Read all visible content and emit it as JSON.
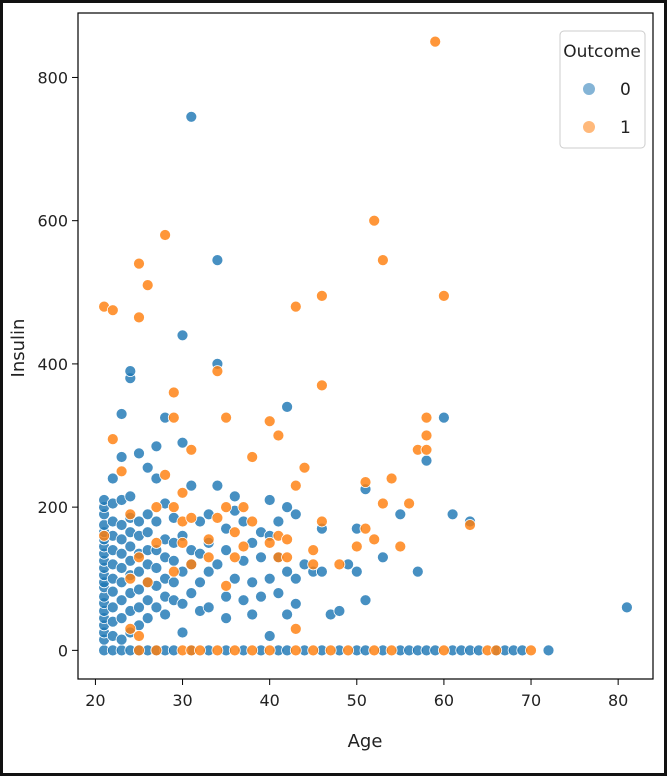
{
  "chart_data": {
    "type": "scatter",
    "title": "",
    "xlabel": "Age",
    "ylabel": "Insulin",
    "xlim": [
      18,
      84
    ],
    "ylim": [
      -40,
      890
    ],
    "xticks": [
      20,
      30,
      40,
      50,
      60,
      70,
      80
    ],
    "yticks": [
      0,
      200,
      400,
      600,
      800
    ],
    "grid": false,
    "legend": {
      "title": "Outcome",
      "position": "top-right",
      "labels": [
        "0",
        "1"
      ]
    },
    "colors": {
      "0": "#1f77b4",
      "1": "#ff7f0e"
    },
    "series": [
      {
        "name": "0",
        "points": [
          [
            21,
            0
          ],
          [
            22,
            0
          ],
          [
            23,
            0
          ],
          [
            24,
            0
          ],
          [
            25,
            0
          ],
          [
            26,
            0
          ],
          [
            27,
            0
          ],
          [
            28,
            0
          ],
          [
            29,
            0
          ],
          [
            31,
            0
          ],
          [
            33,
            0
          ],
          [
            35,
            0
          ],
          [
            37,
            0
          ],
          [
            39,
            0
          ],
          [
            41,
            0
          ],
          [
            42,
            0
          ],
          [
            44,
            0
          ],
          [
            46,
            0
          ],
          [
            48,
            0
          ],
          [
            50,
            0
          ],
          [
            51,
            0
          ],
          [
            53,
            0
          ],
          [
            55,
            0
          ],
          [
            56,
            0
          ],
          [
            57,
            0
          ],
          [
            58,
            0
          ],
          [
            59,
            0
          ],
          [
            61,
            0
          ],
          [
            62,
            0
          ],
          [
            63,
            0
          ],
          [
            64,
            0
          ],
          [
            66,
            0
          ],
          [
            67,
            0
          ],
          [
            68,
            0
          ],
          [
            69,
            0
          ],
          [
            72,
            0
          ],
          [
            21,
            15
          ],
          [
            21,
            25
          ],
          [
            21,
            35
          ],
          [
            21,
            45
          ],
          [
            21,
            55
          ],
          [
            21,
            66
          ],
          [
            21,
            75
          ],
          [
            21,
            88
          ],
          [
            21,
            95
          ],
          [
            21,
            105
          ],
          [
            21,
            115
          ],
          [
            21,
            125
          ],
          [
            21,
            135
          ],
          [
            21,
            145
          ],
          [
            21,
            155
          ],
          [
            21,
            165
          ],
          [
            21,
            175
          ],
          [
            21,
            190
          ],
          [
            21,
            200
          ],
          [
            21,
            210
          ],
          [
            22,
            20
          ],
          [
            22,
            40
          ],
          [
            22,
            60
          ],
          [
            22,
            82
          ],
          [
            22,
            100
          ],
          [
            22,
            120
          ],
          [
            22,
            140
          ],
          [
            22,
            160
          ],
          [
            22,
            180
          ],
          [
            22,
            205
          ],
          [
            22,
            240
          ],
          [
            23,
            15
          ],
          [
            23,
            45
          ],
          [
            23,
            70
          ],
          [
            23,
            95
          ],
          [
            23,
            115
          ],
          [
            23,
            135
          ],
          [
            23,
            155
          ],
          [
            23,
            175
          ],
          [
            23,
            210
          ],
          [
            23,
            270
          ],
          [
            23,
            330
          ],
          [
            24,
            25
          ],
          [
            24,
            55
          ],
          [
            24,
            80
          ],
          [
            24,
            105
          ],
          [
            24,
            125
          ],
          [
            24,
            145
          ],
          [
            24,
            165
          ],
          [
            24,
            185
          ],
          [
            24,
            215
          ],
          [
            24,
            380
          ],
          [
            24,
            390
          ],
          [
            25,
            35
          ],
          [
            25,
            60
          ],
          [
            25,
            85
          ],
          [
            25,
            110
          ],
          [
            25,
            135
          ],
          [
            25,
            160
          ],
          [
            25,
            180
          ],
          [
            25,
            275
          ],
          [
            26,
            45
          ],
          [
            26,
            70
          ],
          [
            26,
            95
          ],
          [
            26,
            120
          ],
          [
            26,
            140
          ],
          [
            26,
            165
          ],
          [
            26,
            190
          ],
          [
            26,
            255
          ],
          [
            27,
            60
          ],
          [
            27,
            90
          ],
          [
            27,
            115
          ],
          [
            27,
            140
          ],
          [
            27,
            180
          ],
          [
            27,
            240
          ],
          [
            27,
            285
          ],
          [
            28,
            50
          ],
          [
            28,
            75
          ],
          [
            28,
            100
          ],
          [
            28,
            130
          ],
          [
            28,
            155
          ],
          [
            28,
            205
          ],
          [
            28,
            325
          ],
          [
            29,
            70
          ],
          [
            29,
            95
          ],
          [
            29,
            125
          ],
          [
            29,
            150
          ],
          [
            29,
            185
          ],
          [
            30,
            25
          ],
          [
            30,
            65
          ],
          [
            30,
            110
          ],
          [
            30,
            160
          ],
          [
            30,
            290
          ],
          [
            30,
            440
          ],
          [
            31,
            80
          ],
          [
            31,
            120
          ],
          [
            31,
            140
          ],
          [
            31,
            230
          ],
          [
            31,
            745
          ],
          [
            32,
            55
          ],
          [
            32,
            95
          ],
          [
            32,
            135
          ],
          [
            32,
            180
          ],
          [
            33,
            60
          ],
          [
            33,
            110
          ],
          [
            33,
            150
          ],
          [
            33,
            190
          ],
          [
            34,
            120
          ],
          [
            34,
            230
          ],
          [
            34,
            400
          ],
          [
            34,
            545
          ],
          [
            35,
            45
          ],
          [
            35,
            75
          ],
          [
            35,
            140
          ],
          [
            35,
            170
          ],
          [
            36,
            100
          ],
          [
            36,
            215
          ],
          [
            36,
            195
          ],
          [
            37,
            70
          ],
          [
            37,
            125
          ],
          [
            37,
            180
          ],
          [
            38,
            50
          ],
          [
            38,
            95
          ],
          [
            38,
            150
          ],
          [
            39,
            75
          ],
          [
            39,
            130
          ],
          [
            39,
            165
          ],
          [
            40,
            20
          ],
          [
            40,
            100
          ],
          [
            40,
            160
          ],
          [
            40,
            210
          ],
          [
            41,
            80
          ],
          [
            41,
            130
          ],
          [
            41,
            180
          ],
          [
            42,
            50
          ],
          [
            42,
            110
          ],
          [
            42,
            200
          ],
          [
            42,
            340
          ],
          [
            43,
            65
          ],
          [
            43,
            100
          ],
          [
            43,
            190
          ],
          [
            44,
            120
          ],
          [
            45,
            110
          ],
          [
            46,
            110
          ],
          [
            46,
            170
          ],
          [
            47,
            50
          ],
          [
            48,
            55
          ],
          [
            49,
            120
          ],
          [
            50,
            110
          ],
          [
            50,
            170
          ],
          [
            51,
            70
          ],
          [
            51,
            225
          ],
          [
            53,
            130
          ],
          [
            55,
            190
          ],
          [
            57,
            110
          ],
          [
            58,
            265
          ],
          [
            60,
            325
          ],
          [
            61,
            190
          ],
          [
            63,
            180
          ],
          [
            81,
            60
          ]
        ]
      },
      {
        "name": "1",
        "points": [
          [
            25,
            0
          ],
          [
            27,
            0
          ],
          [
            30,
            0
          ],
          [
            31,
            0
          ],
          [
            32,
            0
          ],
          [
            34,
            0
          ],
          [
            36,
            0
          ],
          [
            38,
            0
          ],
          [
            40,
            0
          ],
          [
            43,
            0
          ],
          [
            45,
            0
          ],
          [
            47,
            0
          ],
          [
            49,
            0
          ],
          [
            52,
            0
          ],
          [
            54,
            0
          ],
          [
            60,
            0
          ],
          [
            65,
            0
          ],
          [
            66,
            0
          ],
          [
            70,
            0
          ],
          [
            21,
            160
          ],
          [
            21,
            480
          ],
          [
            22,
            475
          ],
          [
            22,
            295
          ],
          [
            23,
            250
          ],
          [
            24,
            100
          ],
          [
            24,
            190
          ],
          [
            24,
            30
          ],
          [
            25,
            540
          ],
          [
            25,
            465
          ],
          [
            25,
            20
          ],
          [
            25,
            130
          ],
          [
            26,
            510
          ],
          [
            26,
            95
          ],
          [
            27,
            200
          ],
          [
            27,
            150
          ],
          [
            28,
            580
          ],
          [
            28,
            245
          ],
          [
            29,
            325
          ],
          [
            29,
            360
          ],
          [
            29,
            200
          ],
          [
            29,
            110
          ],
          [
            30,
            220
          ],
          [
            30,
            180
          ],
          [
            30,
            150
          ],
          [
            31,
            280
          ],
          [
            31,
            185
          ],
          [
            31,
            120
          ],
          [
            33,
            155
          ],
          [
            33,
            130
          ],
          [
            34,
            390
          ],
          [
            34,
            185
          ],
          [
            35,
            325
          ],
          [
            35,
            200
          ],
          [
            35,
            90
          ],
          [
            36,
            130
          ],
          [
            36,
            165
          ],
          [
            37,
            145
          ],
          [
            37,
            200
          ],
          [
            38,
            270
          ],
          [
            38,
            180
          ],
          [
            40,
            320
          ],
          [
            40,
            150
          ],
          [
            41,
            300
          ],
          [
            41,
            160
          ],
          [
            41,
            130
          ],
          [
            42,
            155
          ],
          [
            42,
            130
          ],
          [
            43,
            480
          ],
          [
            43,
            230
          ],
          [
            43,
            30
          ],
          [
            44,
            255
          ],
          [
            45,
            140
          ],
          [
            45,
            120
          ],
          [
            46,
            495
          ],
          [
            46,
            370
          ],
          [
            46,
            180
          ],
          [
            48,
            120
          ],
          [
            50,
            145
          ],
          [
            51,
            235
          ],
          [
            51,
            170
          ],
          [
            52,
            600
          ],
          [
            52,
            155
          ],
          [
            53,
            545
          ],
          [
            53,
            205
          ],
          [
            54,
            240
          ],
          [
            55,
            145
          ],
          [
            56,
            205
          ],
          [
            57,
            280
          ],
          [
            58,
            325
          ],
          [
            58,
            300
          ],
          [
            58,
            280
          ],
          [
            59,
            850
          ],
          [
            60,
            495
          ],
          [
            63,
            175
          ]
        ]
      }
    ]
  }
}
